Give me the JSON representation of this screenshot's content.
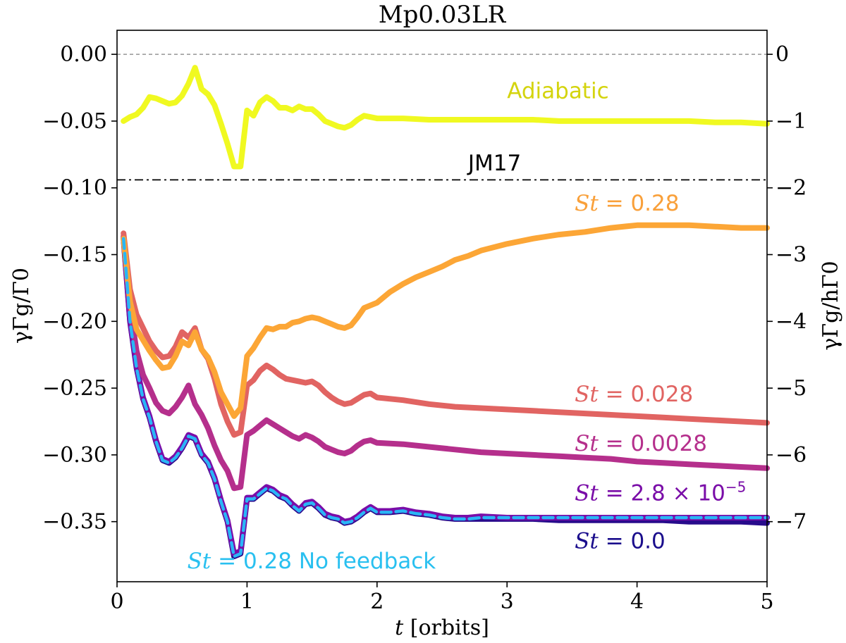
{
  "chart_data": {
    "type": "line",
    "title": "Mp0.03LR",
    "xlabel": "t [orbits]",
    "ylabel_left": "γΓg/Γ0",
    "ylabel_right": "γΓg/hΓ0",
    "xlim": [
      0,
      5
    ],
    "ylim": [
      -0.395,
      0.018
    ],
    "xticks": [
      0,
      1,
      2,
      3,
      4,
      5
    ],
    "xtick_labels": [
      "0",
      "1",
      "2",
      "3",
      "4",
      "5"
    ],
    "yticks": [
      0.0,
      -0.05,
      -0.1,
      -0.15,
      -0.2,
      -0.25,
      -0.3,
      -0.35
    ],
    "ytick_labels": [
      "0.00",
      "−0.05",
      "−0.10",
      "−0.15",
      "−0.20",
      "−0.25",
      "−0.30",
      "−0.35"
    ],
    "right_yticks": [
      0,
      -1,
      -2,
      -3,
      -4,
      -5,
      -6,
      -7
    ],
    "right_ytick_labels": [
      "0",
      "−1",
      "−2",
      "−3",
      "−4",
      "−5",
      "−6",
      "−7"
    ],
    "right_scale": 20,
    "reference_lines": [
      {
        "name": "zero",
        "y": 0.0,
        "color": "#808080",
        "style": "dashed",
        "label": ""
      },
      {
        "name": "jm17",
        "y": -0.094,
        "color": "#000000",
        "style": "dashdot",
        "label": "JM17"
      }
    ],
    "series": [
      {
        "name": "St=0.0",
        "label": "St = 0.0",
        "color": "#280b8c",
        "width": 8,
        "dash": "",
        "x": [
          0.05,
          0.1,
          0.15,
          0.2,
          0.25,
          0.3,
          0.35,
          0.4,
          0.45,
          0.5,
          0.55,
          0.6,
          0.65,
          0.7,
          0.75,
          0.8,
          0.85,
          0.9,
          0.95,
          1.0,
          1.05,
          1.1,
          1.15,
          1.2,
          1.25,
          1.3,
          1.35,
          1.4,
          1.45,
          1.5,
          1.55,
          1.6,
          1.65,
          1.7,
          1.75,
          1.8,
          1.85,
          1.9,
          1.95,
          2.0,
          2.1,
          2.2,
          2.3,
          2.4,
          2.5,
          2.6,
          2.7,
          2.8,
          3.0,
          3.2,
          3.4,
          3.6,
          3.8,
          4.0,
          4.2,
          4.4,
          4.6,
          4.8,
          5.0
        ],
        "y": [
          -0.138,
          -0.2,
          -0.235,
          -0.258,
          -0.272,
          -0.29,
          -0.304,
          -0.306,
          -0.302,
          -0.295,
          -0.286,
          -0.288,
          -0.3,
          -0.306,
          -0.318,
          -0.335,
          -0.35,
          -0.376,
          -0.374,
          -0.333,
          -0.333,
          -0.329,
          -0.325,
          -0.327,
          -0.331,
          -0.333,
          -0.338,
          -0.342,
          -0.337,
          -0.336,
          -0.34,
          -0.345,
          -0.347,
          -0.348,
          -0.351,
          -0.35,
          -0.347,
          -0.343,
          -0.34,
          -0.343,
          -0.343,
          -0.342,
          -0.344,
          -0.345,
          -0.347,
          -0.348,
          -0.348,
          -0.348,
          -0.348,
          -0.348,
          -0.349,
          -0.349,
          -0.349,
          -0.349,
          -0.349,
          -0.35,
          -0.35,
          -0.35,
          -0.351
        ]
      },
      {
        "name": "St=2.8e-5",
        "label": "St = 2.8 × 10⁻⁵",
        "color": "#7a0da8",
        "width": 8,
        "dash": "",
        "x": [
          0.05,
          0.1,
          0.15,
          0.2,
          0.25,
          0.3,
          0.35,
          0.4,
          0.45,
          0.5,
          0.55,
          0.6,
          0.65,
          0.7,
          0.75,
          0.8,
          0.85,
          0.9,
          0.95,
          1.0,
          1.05,
          1.1,
          1.15,
          1.2,
          1.25,
          1.3,
          1.35,
          1.4,
          1.45,
          1.5,
          1.55,
          1.6,
          1.65,
          1.7,
          1.75,
          1.8,
          1.85,
          1.9,
          1.95,
          2.0,
          2.1,
          2.2,
          2.3,
          2.4,
          2.5,
          2.6,
          2.7,
          2.8,
          3.0,
          3.2,
          3.4,
          3.6,
          3.8,
          4.0,
          4.2,
          4.4,
          4.6,
          4.8,
          5.0
        ],
        "y": [
          -0.137,
          -0.199,
          -0.234,
          -0.257,
          -0.271,
          -0.289,
          -0.303,
          -0.305,
          -0.301,
          -0.294,
          -0.285,
          -0.287,
          -0.299,
          -0.305,
          -0.317,
          -0.334,
          -0.349,
          -0.374,
          -0.372,
          -0.332,
          -0.332,
          -0.328,
          -0.324,
          -0.326,
          -0.33,
          -0.332,
          -0.337,
          -0.341,
          -0.336,
          -0.335,
          -0.339,
          -0.344,
          -0.346,
          -0.347,
          -0.35,
          -0.349,
          -0.346,
          -0.342,
          -0.339,
          -0.342,
          -0.342,
          -0.341,
          -0.343,
          -0.344,
          -0.346,
          -0.347,
          -0.347,
          -0.346,
          -0.347,
          -0.347,
          -0.347,
          -0.347,
          -0.347,
          -0.347,
          -0.347,
          -0.347,
          -0.347,
          -0.347,
          -0.347
        ]
      },
      {
        "name": "St=0.0028",
        "label": "St = 0.0028",
        "color": "#b52f8c",
        "width": 8,
        "dash": "",
        "x": [
          0.05,
          0.1,
          0.15,
          0.2,
          0.25,
          0.3,
          0.35,
          0.4,
          0.45,
          0.5,
          0.55,
          0.6,
          0.65,
          0.7,
          0.75,
          0.8,
          0.85,
          0.9,
          0.95,
          1.0,
          1.05,
          1.1,
          1.15,
          1.2,
          1.25,
          1.3,
          1.35,
          1.4,
          1.45,
          1.5,
          1.55,
          1.6,
          1.65,
          1.7,
          1.75,
          1.8,
          1.85,
          1.9,
          1.95,
          2.0,
          2.2,
          2.4,
          2.6,
          2.8,
          3.0,
          3.2,
          3.4,
          3.6,
          3.8,
          4.0,
          4.2,
          4.4,
          4.6,
          4.8,
          5.0
        ],
        "y": [
          -0.136,
          -0.19,
          -0.222,
          -0.24,
          -0.25,
          -0.261,
          -0.267,
          -0.269,
          -0.264,
          -0.257,
          -0.248,
          -0.262,
          -0.27,
          -0.28,
          -0.293,
          -0.304,
          -0.312,
          -0.325,
          -0.324,
          -0.285,
          -0.282,
          -0.278,
          -0.274,
          -0.277,
          -0.28,
          -0.283,
          -0.286,
          -0.288,
          -0.285,
          -0.287,
          -0.29,
          -0.294,
          -0.296,
          -0.298,
          -0.299,
          -0.297,
          -0.293,
          -0.29,
          -0.289,
          -0.291,
          -0.292,
          -0.294,
          -0.296,
          -0.298,
          -0.299,
          -0.3,
          -0.301,
          -0.302,
          -0.303,
          -0.305,
          -0.306,
          -0.307,
          -0.308,
          -0.309,
          -0.31
        ]
      },
      {
        "name": "St=0.028",
        "label": "St = 0.028",
        "color": "#e16462",
        "width": 8,
        "dash": "",
        "x": [
          0.05,
          0.1,
          0.15,
          0.2,
          0.25,
          0.3,
          0.35,
          0.4,
          0.45,
          0.5,
          0.55,
          0.6,
          0.65,
          0.7,
          0.75,
          0.8,
          0.85,
          0.9,
          0.95,
          1.0,
          1.05,
          1.1,
          1.15,
          1.2,
          1.25,
          1.3,
          1.35,
          1.4,
          1.45,
          1.5,
          1.55,
          1.6,
          1.65,
          1.7,
          1.75,
          1.8,
          1.85,
          1.9,
          1.95,
          2.0,
          2.2,
          2.4,
          2.6,
          2.8,
          3.0,
          3.2,
          3.4,
          3.6,
          3.8,
          4.0,
          4.2,
          4.4,
          4.6,
          4.8,
          5.0
        ],
        "y": [
          -0.134,
          -0.176,
          -0.195,
          -0.205,
          -0.215,
          -0.222,
          -0.227,
          -0.226,
          -0.219,
          -0.208,
          -0.212,
          -0.205,
          -0.221,
          -0.228,
          -0.243,
          -0.262,
          -0.275,
          -0.285,
          -0.283,
          -0.248,
          -0.244,
          -0.237,
          -0.233,
          -0.236,
          -0.24,
          -0.243,
          -0.244,
          -0.245,
          -0.246,
          -0.245,
          -0.248,
          -0.253,
          -0.257,
          -0.26,
          -0.262,
          -0.261,
          -0.258,
          -0.255,
          -0.254,
          -0.257,
          -0.259,
          -0.262,
          -0.264,
          -0.265,
          -0.266,
          -0.267,
          -0.268,
          -0.269,
          -0.27,
          -0.271,
          -0.272,
          -0.273,
          -0.274,
          -0.275,
          -0.276
        ]
      },
      {
        "name": "St=0.28",
        "label": "St = 0.28",
        "color": "#fca636",
        "width": 8,
        "dash": "",
        "x": [
          0.05,
          0.1,
          0.15,
          0.2,
          0.25,
          0.3,
          0.35,
          0.4,
          0.45,
          0.5,
          0.55,
          0.6,
          0.65,
          0.7,
          0.75,
          0.8,
          0.85,
          0.9,
          0.95,
          1.0,
          1.05,
          1.1,
          1.15,
          1.2,
          1.25,
          1.3,
          1.35,
          1.4,
          1.45,
          1.5,
          1.55,
          1.6,
          1.65,
          1.7,
          1.75,
          1.8,
          1.85,
          1.9,
          1.95,
          2.0,
          2.1,
          2.2,
          2.3,
          2.4,
          2.5,
          2.6,
          2.7,
          2.8,
          3.0,
          3.2,
          3.4,
          3.6,
          3.8,
          4.0,
          4.2,
          4.4,
          4.6,
          4.8,
          5.0
        ],
        "y": [
          -0.138,
          -0.185,
          -0.206,
          -0.214,
          -0.222,
          -0.229,
          -0.235,
          -0.234,
          -0.226,
          -0.215,
          -0.218,
          -0.208,
          -0.221,
          -0.227,
          -0.238,
          -0.253,
          -0.262,
          -0.271,
          -0.265,
          -0.226,
          -0.22,
          -0.212,
          -0.205,
          -0.206,
          -0.204,
          -0.204,
          -0.201,
          -0.2,
          -0.198,
          -0.197,
          -0.198,
          -0.2,
          -0.202,
          -0.204,
          -0.205,
          -0.203,
          -0.197,
          -0.19,
          -0.188,
          -0.186,
          -0.178,
          -0.172,
          -0.167,
          -0.163,
          -0.159,
          -0.154,
          -0.151,
          -0.147,
          -0.142,
          -0.138,
          -0.135,
          -0.133,
          -0.13,
          -0.128,
          -0.128,
          -0.128,
          -0.129,
          -0.13,
          -0.13
        ]
      },
      {
        "name": "Adiabatic",
        "label": "Adiabatic",
        "color": "#f0f921",
        "width": 8,
        "dash": "",
        "x": [
          0.05,
          0.1,
          0.15,
          0.2,
          0.25,
          0.3,
          0.35,
          0.4,
          0.45,
          0.5,
          0.55,
          0.6,
          0.65,
          0.7,
          0.75,
          0.8,
          0.85,
          0.9,
          0.95,
          1.0,
          1.05,
          1.1,
          1.15,
          1.2,
          1.25,
          1.3,
          1.35,
          1.4,
          1.45,
          1.5,
          1.55,
          1.6,
          1.65,
          1.7,
          1.75,
          1.8,
          1.85,
          1.9,
          1.95,
          2.0,
          2.2,
          2.4,
          2.6,
          2.8,
          3.0,
          3.2,
          3.4,
          3.6,
          3.8,
          4.0,
          4.2,
          4.4,
          4.6,
          4.8,
          5.0
        ],
        "y": [
          -0.05,
          -0.047,
          -0.045,
          -0.04,
          -0.032,
          -0.033,
          -0.035,
          -0.037,
          -0.036,
          -0.031,
          -0.022,
          -0.01,
          -0.026,
          -0.03,
          -0.038,
          -0.052,
          -0.067,
          -0.084,
          -0.084,
          -0.042,
          -0.046,
          -0.036,
          -0.032,
          -0.035,
          -0.04,
          -0.04,
          -0.042,
          -0.039,
          -0.041,
          -0.041,
          -0.045,
          -0.05,
          -0.052,
          -0.054,
          -0.055,
          -0.053,
          -0.049,
          -0.046,
          -0.047,
          -0.048,
          -0.048,
          -0.049,
          -0.049,
          -0.049,
          -0.049,
          -0.049,
          -0.05,
          -0.05,
          -0.05,
          -0.05,
          -0.05,
          -0.05,
          -0.051,
          -0.051,
          -0.052
        ]
      },
      {
        "name": "St=0.28 No feedback",
        "label": "St = 0.28 No feedback",
        "color": "#29b6f6",
        "width": 4.5,
        "dash": "14 7",
        "x": [
          0.05,
          0.1,
          0.15,
          0.2,
          0.25,
          0.3,
          0.35,
          0.4,
          0.45,
          0.5,
          0.55,
          0.6,
          0.65,
          0.7,
          0.75,
          0.8,
          0.85,
          0.9,
          0.95,
          1.0,
          1.05,
          1.1,
          1.15,
          1.2,
          1.25,
          1.3,
          1.35,
          1.4,
          1.45,
          1.5,
          1.55,
          1.6,
          1.65,
          1.7,
          1.75,
          1.8,
          1.85,
          1.9,
          1.95,
          2.0,
          2.1,
          2.2,
          2.3,
          2.4,
          2.5,
          2.6,
          2.7,
          2.8,
          3.0,
          3.2,
          3.4,
          3.6,
          3.8,
          4.0,
          4.2,
          4.4,
          4.6,
          4.8,
          5.0
        ],
        "y": [
          -0.138,
          -0.2,
          -0.235,
          -0.258,
          -0.272,
          -0.29,
          -0.304,
          -0.306,
          -0.302,
          -0.295,
          -0.286,
          -0.288,
          -0.3,
          -0.306,
          -0.318,
          -0.335,
          -0.35,
          -0.376,
          -0.374,
          -0.333,
          -0.333,
          -0.329,
          -0.325,
          -0.327,
          -0.331,
          -0.333,
          -0.338,
          -0.342,
          -0.337,
          -0.336,
          -0.34,
          -0.345,
          -0.347,
          -0.348,
          -0.351,
          -0.35,
          -0.347,
          -0.343,
          -0.34,
          -0.343,
          -0.343,
          -0.342,
          -0.344,
          -0.345,
          -0.347,
          -0.348,
          -0.348,
          -0.347,
          -0.347,
          -0.347,
          -0.347,
          -0.347,
          -0.347,
          -0.347,
          -0.347,
          -0.347,
          -0.347,
          -0.347,
          -0.347
        ]
      }
    ],
    "annotations": [
      {
        "name": "label-adiabatic",
        "text": "Adiabatic",
        "color": "#d4d40e",
        "x": 3.0,
        "y": -0.033,
        "italic_prefix": ""
      },
      {
        "name": "label-jm17",
        "text": "JM17",
        "color": "#000000",
        "x": 2.7,
        "y": -0.087,
        "italic_prefix": ""
      },
      {
        "name": "label-st028",
        "text": " = 0.28",
        "color": "#f9a03a",
        "x": 3.52,
        "y": -0.117,
        "italic_prefix": "St"
      },
      {
        "name": "label-st0028",
        "text": " = 0.028",
        "color": "#e16462",
        "x": 3.52,
        "y": -0.26,
        "italic_prefix": "St"
      },
      {
        "name": "label-st00028",
        "text": " = 0.0028",
        "color": "#b52f8c",
        "x": 3.52,
        "y": -0.297,
        "italic_prefix": "St"
      },
      {
        "name": "label-st28e5",
        "text": " = 2.8 × 10",
        "sup": "−5",
        "color": "#7a0da8",
        "x": 3.52,
        "y": -0.334,
        "italic_prefix": "St"
      },
      {
        "name": "label-st00",
        "text": " = 0.0",
        "color": "#1a0d8c",
        "x": 3.52,
        "y": -0.37,
        "italic_prefix": "St"
      },
      {
        "name": "label-st028-nofb",
        "text": " = 0.28 No feedback",
        "color": "#29c0f0",
        "x": 0.54,
        "y": -0.385,
        "italic_prefix": "St"
      }
    ]
  }
}
